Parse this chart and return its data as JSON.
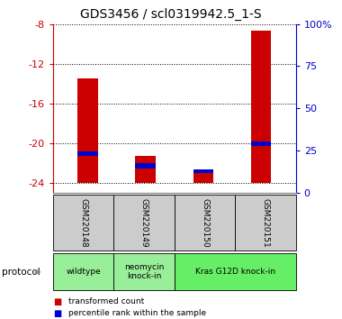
{
  "title": "GDS3456 / scl0319942.5_1-S",
  "samples": [
    "GSM220148",
    "GSM220149",
    "GSM220150",
    "GSM220151"
  ],
  "red_bar_bottoms": [
    -24,
    -24,
    -24,
    -24
  ],
  "red_bar_tops": [
    -13.5,
    -21.3,
    -22.8,
    -8.7
  ],
  "blue_bar_bottoms": [
    -21.3,
    -22.5,
    -23.0,
    -20.3
  ],
  "blue_bar_tops": [
    -20.8,
    -22.0,
    -22.6,
    -19.8
  ],
  "ylim_left": [
    -25,
    -8
  ],
  "ylim_right": [
    0,
    100
  ],
  "yticks_left": [
    -24,
    -20,
    -16,
    -12,
    -8
  ],
  "yticks_right": [
    0,
    25,
    50,
    75,
    100
  ],
  "ytick_labels_left": [
    "-24",
    "-20",
    "-16",
    "-12",
    "-8"
  ],
  "ytick_labels_right": [
    "0",
    "25",
    "50",
    "75",
    "100%"
  ],
  "left_axis_color": "#cc0000",
  "right_axis_color": "#0000cc",
  "bar_color_red": "#cc0000",
  "bar_color_blue": "#0000cc",
  "bar_width": 0.35,
  "groups": [
    {
      "label": "wildtype",
      "samples": [
        0
      ],
      "color": "#99ee99"
    },
    {
      "label": "neomycin\nknock-in",
      "samples": [
        1
      ],
      "color": "#99ee99"
    },
    {
      "label": "Kras G12D knock-in",
      "samples": [
        2,
        3
      ],
      "color": "#66ee66"
    }
  ],
  "protocol_label": "protocol",
  "legend_items": [
    {
      "color": "#cc0000",
      "label": "transformed count"
    },
    {
      "color": "#0000cc",
      "label": "percentile rank within the sample"
    }
  ],
  "grid_color": "#000000",
  "sample_box_color": "#cccccc",
  "title_fontsize": 10,
  "tick_fontsize": 8,
  "label_fontsize": 7.5
}
